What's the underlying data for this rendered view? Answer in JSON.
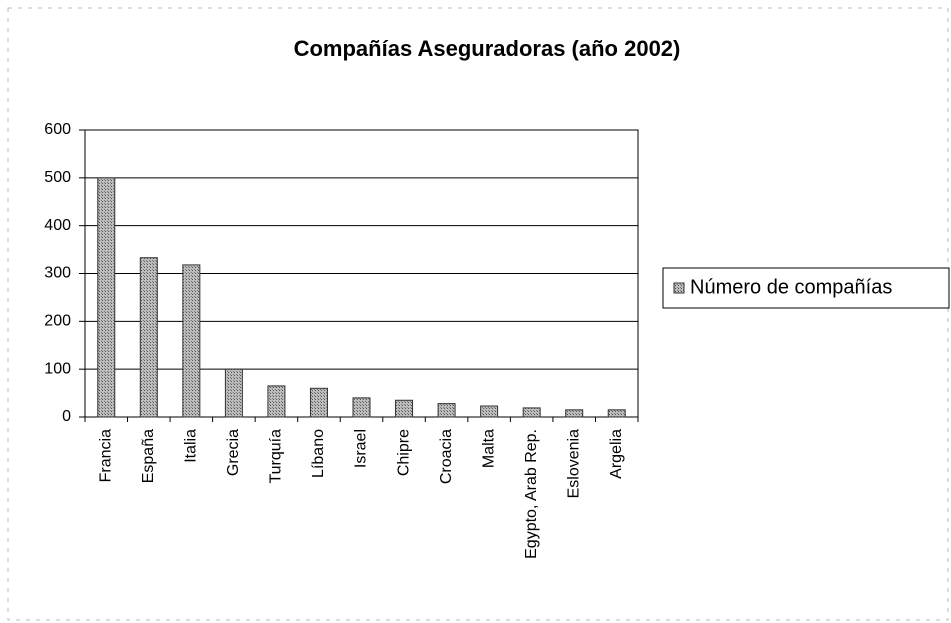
{
  "chart_data": {
    "type": "bar",
    "title": "Compañías Aseguradoras (año  2002)",
    "categories": [
      "Francia",
      "España",
      "Italia",
      "Grecia",
      "Turquía",
      "Líbano",
      "Israel",
      "Chipre",
      "Croacia",
      "Malta",
      "Egypto, Arab Rep.",
      "Eslovenia",
      "Argelia"
    ],
    "series": [
      {
        "name": "Número de compañías",
        "color": "#9a9a9a",
        "values": [
          500,
          333,
          318,
          100,
          65,
          60,
          40,
          35,
          28,
          23,
          19,
          15,
          15
        ]
      }
    ],
    "ylim": [
      0,
      600
    ],
    "yticks": [
      0,
      100,
      200,
      300,
      400,
      500,
      600
    ],
    "grid": true,
    "legend": "right"
  }
}
